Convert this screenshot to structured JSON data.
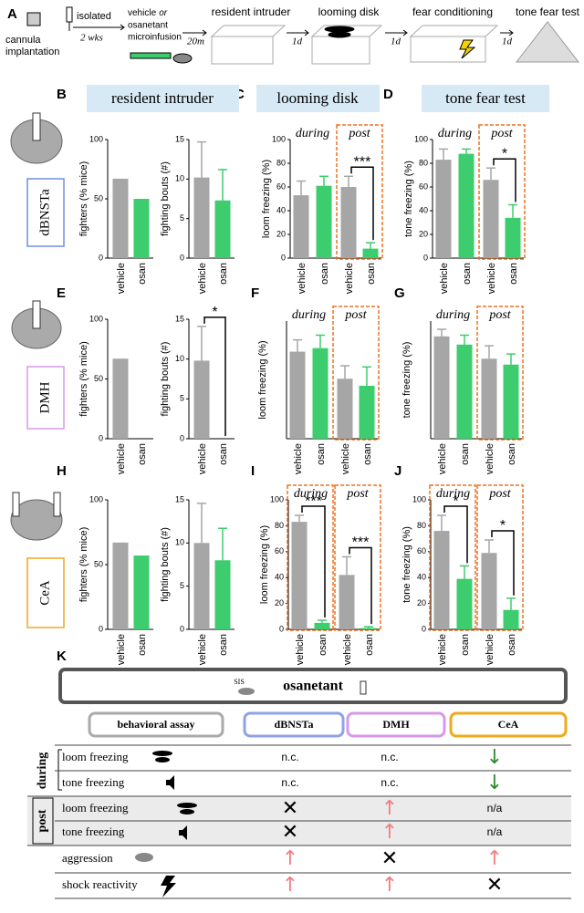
{
  "panel_labels": [
    "A",
    "B",
    "C",
    "D",
    "E",
    "F",
    "G",
    "H",
    "I",
    "J",
    "K"
  ],
  "timeline": {
    "cannula": [
      "cannula",
      "implantation"
    ],
    "isolated": "isolated",
    "duration": "2 wks",
    "infusion": [
      "vehicle",
      "or",
      "osanetant",
      "microinfusion"
    ],
    "delay": "20m",
    "steps": [
      "resident intruder",
      "looming disk",
      "fear conditioning",
      "tone fear test"
    ],
    "intervals": [
      "1d",
      "1d",
      "1d"
    ]
  },
  "column_headers": [
    "resident intruder",
    "looming disk",
    "tone fear test"
  ],
  "row_labels": [
    "dBNSTa",
    "DMH",
    "CeA"
  ],
  "chart_data": [
    {
      "type": "bar",
      "ylabel": "fighters (% mice)",
      "categories": [
        "vehicle",
        "osan"
      ],
      "values": [
        67,
        50
      ],
      "errors": [
        null,
        null
      ],
      "colors": [
        "#a6a6a6",
        "#3dcc6e"
      ],
      "ylim": [
        0,
        100
      ],
      "yticks": [
        0,
        50,
        100
      ]
    },
    {
      "type": "bar",
      "ylabel": "fighting bouts (#)",
      "categories": [
        "vehicle",
        "osan"
      ],
      "values": [
        10.2,
        7.3
      ],
      "errors": [
        4.5,
        3.9
      ],
      "colors": [
        "#a6a6a6",
        "#3dcc6e"
      ],
      "ylim": [
        0,
        15
      ],
      "yticks": [
        0,
        5,
        10,
        15
      ]
    },
    {
      "type": "bar",
      "ylabel": "loom freezing (%)",
      "categories": [
        "vehicle",
        "osan",
        "vehicle",
        "osan"
      ],
      "values": [
        53,
        61,
        60,
        8
      ],
      "errors": [
        12,
        8,
        9,
        5
      ],
      "colors": [
        "#a6a6a6",
        "#3dcc6e",
        "#a6a6a6",
        "#3dcc6e"
      ],
      "ylim": [
        0,
        100
      ],
      "yticks": [
        0,
        20,
        40,
        60,
        80,
        100
      ],
      "groups": [
        "during",
        "post"
      ],
      "annotations": [
        "***"
      ]
    },
    {
      "type": "bar",
      "ylabel": "tone freezing (%)",
      "categories": [
        "vehicle",
        "osan",
        "vehicle",
        "osan"
      ],
      "values": [
        83,
        88,
        66,
        34
      ],
      "errors": [
        9,
        4,
        10,
        11
      ],
      "colors": [
        "#a6a6a6",
        "#3dcc6e",
        "#a6a6a6",
        "#3dcc6e"
      ],
      "ylim": [
        0,
        100
      ],
      "yticks": [
        0,
        20,
        40,
        60,
        80,
        100
      ],
      "groups": [
        "during",
        "post"
      ],
      "annotations": [
        "*"
      ]
    },
    {
      "type": "bar",
      "ylabel": "fighters (% mice)",
      "categories": [
        "vehicle",
        "osan"
      ],
      "values": [
        67,
        0
      ],
      "errors": [
        null,
        null
      ],
      "colors": [
        "#a6a6a6",
        "#3dcc6e"
      ],
      "ylim": [
        0,
        100
      ],
      "yticks": [
        0,
        50,
        100
      ]
    },
    {
      "type": "bar",
      "ylabel": "fighting bouts (#)",
      "categories": [
        "vehicle",
        "osan"
      ],
      "values": [
        9.8,
        0
      ],
      "errors": [
        4.3,
        null
      ],
      "colors": [
        "#a6a6a6",
        "#3dcc6e"
      ],
      "ylim": [
        0,
        15
      ],
      "yticks": [
        0,
        5,
        10,
        15
      ],
      "annotations": [
        "*"
      ]
    },
    {
      "type": "bar",
      "ylabel": "loom freezing (%)",
      "categories": [
        "vehicle",
        "osan",
        "vehicle",
        "osan"
      ],
      "values": [
        74,
        77,
        51,
        45
      ],
      "errors": [
        10,
        11,
        11,
        16
      ],
      "colors": [
        "#a6a6a6",
        "#3dcc6e",
        "#a6a6a6",
        "#3dcc6e"
      ],
      "ylim": [
        0,
        100
      ],
      "groups": [
        "during",
        "post"
      ]
    },
    {
      "type": "bar",
      "ylabel": "tone freezing (%)",
      "categories": [
        "vehicle",
        "osan",
        "vehicle",
        "osan"
      ],
      "values": [
        87,
        80,
        68,
        63
      ],
      "errors": [
        6,
        8,
        11,
        9
      ],
      "colors": [
        "#a6a6a6",
        "#3dcc6e",
        "#a6a6a6",
        "#3dcc6e"
      ],
      "ylim": [
        0,
        100
      ],
      "groups": [
        "during",
        "post"
      ]
    },
    {
      "type": "bar",
      "ylabel": "fighters (% mice)",
      "categories": [
        "vehicle",
        "osan"
      ],
      "values": [
        67,
        57
      ],
      "errors": [
        null,
        null
      ],
      "colors": [
        "#a6a6a6",
        "#3dcc6e"
      ],
      "ylim": [
        0,
        100
      ],
      "yticks": [
        0,
        50,
        100
      ]
    },
    {
      "type": "bar",
      "ylabel": "fighting bouts (#)",
      "categories": [
        "vehicle",
        "osan"
      ],
      "values": [
        10,
        8
      ],
      "errors": [
        4.6,
        3.7
      ],
      "colors": [
        "#a6a6a6",
        "#3dcc6e"
      ],
      "ylim": [
        0,
        15
      ],
      "yticks": [
        0,
        5,
        10,
        15
      ]
    },
    {
      "type": "bar",
      "ylabel": "loom freezing (%)",
      "categories": [
        "vehicle",
        "osan",
        "vehicle",
        "osan"
      ],
      "values": [
        83,
        5,
        42,
        1
      ],
      "errors": [
        5,
        2,
        14,
        1
      ],
      "colors": [
        "#a6a6a6",
        "#3dcc6e",
        "#a6a6a6",
        "#3dcc6e"
      ],
      "ylim": [
        0,
        100
      ],
      "yticks": [
        0,
        20,
        40,
        60,
        80,
        100
      ],
      "groups": [
        "during",
        "post"
      ],
      "annotations": [
        "***",
        "***"
      ]
    },
    {
      "type": "bar",
      "ylabel": "tone freezing (%)",
      "categories": [
        "vehicle",
        "osan",
        "vehicle",
        "osan"
      ],
      "values": [
        76,
        39,
        59,
        15
      ],
      "errors": [
        12,
        10,
        10,
        9
      ],
      "colors": [
        "#a6a6a6",
        "#3dcc6e",
        "#a6a6a6",
        "#3dcc6e"
      ],
      "ylim": [
        0,
        100
      ],
      "yticks": [
        0,
        20,
        40,
        60,
        80,
        100
      ],
      "groups": [
        "during",
        "post"
      ],
      "annotations": [
        "*",
        "*"
      ]
    }
  ],
  "table": {
    "title": "osanetant",
    "icon_label": "SIS",
    "columns": [
      "behavioral assay",
      "dBNSTa",
      "DMH",
      "CeA"
    ],
    "groups": [
      "during",
      "post"
    ],
    "rows": [
      {
        "label": "loom freezing",
        "cells": [
          {
            "text": "n.c.",
            "color": "#000000"
          },
          {
            "text": "n.c.",
            "color": "#000000"
          },
          {
            "text": "↓",
            "color": "#2e8b2e"
          }
        ]
      },
      {
        "label": "tone freezing",
        "cells": [
          {
            "text": "n.c.",
            "color": "#000000"
          },
          {
            "text": "n.c.",
            "color": "#000000"
          },
          {
            "text": "↓",
            "color": "#2e8b2e"
          }
        ]
      },
      {
        "label": "loom freezing",
        "cells": [
          {
            "text": "✕",
            "color": "#000000"
          },
          {
            "text": "↑",
            "color": "#f07f7f"
          },
          {
            "text": "n/a",
            "color": "#000000"
          }
        ]
      },
      {
        "label": "tone freezing",
        "cells": [
          {
            "text": "✕",
            "color": "#000000"
          },
          {
            "text": "↑",
            "color": "#f07f7f"
          },
          {
            "text": "n/a",
            "color": "#000000"
          }
        ]
      },
      {
        "label": "aggression",
        "cells": [
          {
            "text": "↑",
            "color": "#f07f7f"
          },
          {
            "text": "✕",
            "color": "#000000"
          },
          {
            "text": "↑",
            "color": "#f07f7f"
          }
        ]
      },
      {
        "label": "shock reactivity",
        "cells": [
          {
            "text": "↑",
            "color": "#f07f7f"
          },
          {
            "text": "↑",
            "color": "#f07f7f"
          },
          {
            "text": "✕",
            "color": "#000000"
          }
        ]
      }
    ]
  }
}
